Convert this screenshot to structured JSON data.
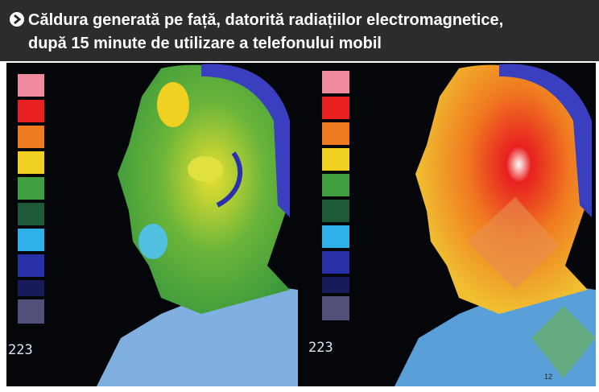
{
  "header": {
    "title_line1": "Căldura generată pe față, datorită radiațiilor electromagnetice,",
    "title_line2": "după 15 minute de utilizare a telefonului mobil"
  },
  "image": {
    "scale_label_left": "223",
    "scale_label_right": "223",
    "page_number": "12"
  }
}
